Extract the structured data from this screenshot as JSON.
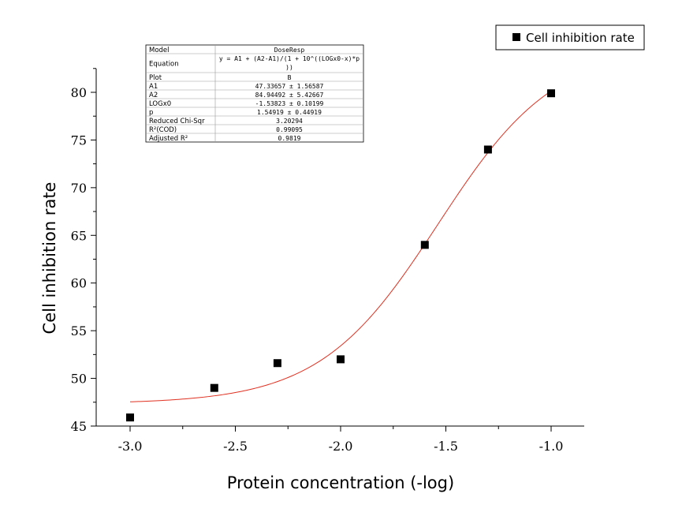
{
  "chart_data": {
    "type": "scatter",
    "xlabel": "Protein concentration (-log)",
    "ylabel": "Cell inhibition rate",
    "xlim": [
      -3.15,
      -0.85
    ],
    "ylim": [
      45,
      83
    ],
    "x_ticks": [
      -3.0,
      -2.5,
      -2.0,
      -1.5,
      -1.0
    ],
    "x_tick_labels": [
      "-3.0",
      "-2.5",
      "-2.0",
      "-1.5",
      "-1.0"
    ],
    "y_ticks": [
      45,
      50,
      55,
      60,
      65,
      70,
      75,
      80
    ],
    "y_tick_labels": [
      "45",
      "50",
      "55",
      "60",
      "65",
      "70",
      "75",
      "80"
    ],
    "legend_position": "top-right",
    "series": [
      {
        "name": "Cell inhibition rate",
        "marker": "square",
        "color": "#000000",
        "x": [
          -3.0,
          -2.6,
          -2.3,
          -2.0,
          -1.6,
          -1.3,
          -1.0
        ],
        "y": [
          45.9,
          49.0,
          51.6,
          52.0,
          64.0,
          74.0,
          79.9
        ]
      }
    ],
    "fit": {
      "model": "DoseResp",
      "color": "#e03020",
      "A1": 47.33657,
      "A2": 84.94492,
      "LOGx0": -1.53823,
      "p": 1.54919,
      "x_range": [
        -3.0,
        -1.0
      ]
    },
    "fit_table": [
      {
        "key": "Model",
        "value": "DoseResp"
      },
      {
        "key": "Equation",
        "value": "y = A1 + (A2-A1)/(1 + 10^((LOGx0-x)*p",
        "value2": "))"
      },
      {
        "key": "Plot",
        "value": "B"
      },
      {
        "key": "A1",
        "value": "47.33657 ± 1.56587"
      },
      {
        "key": "A2",
        "value": "84.94492 ± 5.42667"
      },
      {
        "key": "LOGx0",
        "value": "-1.53823 ± 0.10199"
      },
      {
        "key": "p",
        "value": "1.54919 ± 0.44919"
      },
      {
        "key": "Reduced Chi-Sqr",
        "value": "3.20294"
      },
      {
        "key": "R²(COD)",
        "value": "0.99095"
      },
      {
        "key": "Adjusted R²",
        "value": "0.9819"
      }
    ]
  }
}
